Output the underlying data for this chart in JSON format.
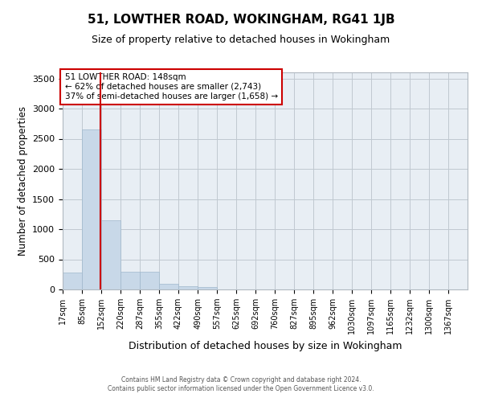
{
  "title": "51, LOWTHER ROAD, WOKINGHAM, RG41 1JB",
  "subtitle": "Size of property relative to detached houses in Wokingham",
  "xlabel": "Distribution of detached houses by size in Wokingham",
  "ylabel": "Number of detached properties",
  "property_label": "51 LOWTHER ROAD: 148sqm",
  "annotation_line1": "← 62% of detached houses are smaller (2,743)",
  "annotation_line2": "37% of semi-detached houses are larger (1,658) →",
  "bin_labels": [
    "17sqm",
    "85sqm",
    "152sqm",
    "220sqm",
    "287sqm",
    "355sqm",
    "422sqm",
    "490sqm",
    "557sqm",
    "625sqm",
    "692sqm",
    "760sqm",
    "827sqm",
    "895sqm",
    "962sqm",
    "1030sqm",
    "1097sqm",
    "1165sqm",
    "1232sqm",
    "1300sqm",
    "1367sqm"
  ],
  "bin_edges": [
    17,
    85,
    152,
    220,
    287,
    355,
    422,
    490,
    557,
    625,
    692,
    760,
    827,
    895,
    962,
    1030,
    1097,
    1165,
    1232,
    1300,
    1367
  ],
  "bar_heights": [
    280,
    2650,
    1150,
    290,
    290,
    95,
    60,
    35,
    0,
    0,
    0,
    0,
    0,
    0,
    0,
    0,
    0,
    0,
    0,
    0
  ],
  "bar_color": "#c8d8e8",
  "bar_edgecolor": "#a0b8cc",
  "vline_x": 148,
  "vline_color": "#cc0000",
  "ylim": [
    0,
    3600
  ],
  "yticks": [
    0,
    500,
    1000,
    1500,
    2000,
    2500,
    3000,
    3500
  ],
  "grid_color": "#c0c8d0",
  "bg_color": "#e8eef4",
  "annotation_box_color": "#cc0000",
  "footer_line1": "Contains HM Land Registry data © Crown copyright and database right 2024.",
  "footer_line2": "Contains public sector information licensed under the Open Government Licence v3.0."
}
